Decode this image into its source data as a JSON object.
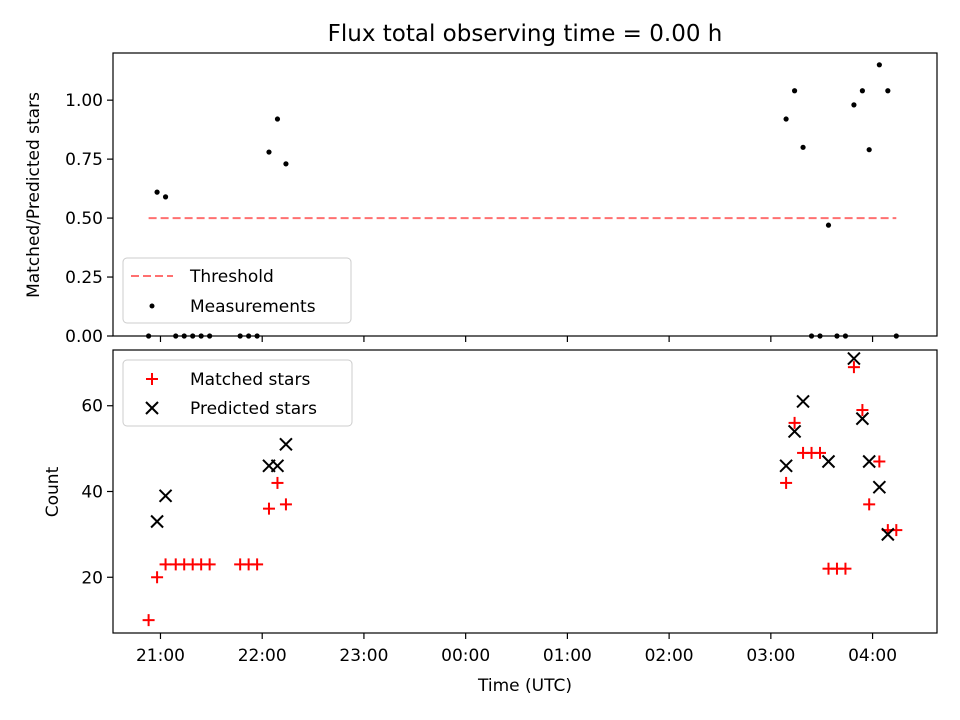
{
  "figure": {
    "title": "Flux total observing time = 0.00 h",
    "xlabel": "Time (UTC)",
    "xtick_labels": [
      "21:00",
      "22:00",
      "23:00",
      "00:00",
      "01:00",
      "02:00",
      "03:00",
      "04:00"
    ]
  },
  "chart_data": [
    {
      "type": "scatter",
      "panel": "top",
      "ylabel": "Matched/Predicted stars",
      "xlim": [
        "20:32",
        "04:38"
      ],
      "ylim": [
        0,
        1.2
      ],
      "y_tick_values": [
        0,
        0.25,
        0.5,
        0.75,
        1.0
      ],
      "y_tick_labels": [
        "0.00",
        "0.25",
        "0.50",
        "0.75",
        "1.00"
      ],
      "legend_position": "lower left",
      "threshold": {
        "name": "Threshold",
        "y": 0.5,
        "x_range": [
          "20:53",
          "04:14"
        ],
        "color": "#ff7070",
        "style": "dashed"
      },
      "series": [
        {
          "name": "Measurements",
          "color": "#000000",
          "marker": "dot",
          "points": [
            {
              "x": "20:53",
              "y": 0.0
            },
            {
              "x": "20:58",
              "y": 0.61
            },
            {
              "x": "21:03",
              "y": 0.59
            },
            {
              "x": "21:09",
              "y": 0.0
            },
            {
              "x": "21:14",
              "y": 0.0
            },
            {
              "x": "21:19",
              "y": 0.0
            },
            {
              "x": "21:24",
              "y": 0.0
            },
            {
              "x": "21:29",
              "y": 0.0
            },
            {
              "x": "21:47",
              "y": 0.0
            },
            {
              "x": "21:52",
              "y": 0.0
            },
            {
              "x": "21:57",
              "y": 0.0
            },
            {
              "x": "22:04",
              "y": 0.78
            },
            {
              "x": "22:09",
              "y": 0.92
            },
            {
              "x": "22:14",
              "y": 0.73
            },
            {
              "x": "03:09",
              "y": 0.92
            },
            {
              "x": "03:14",
              "y": 1.04
            },
            {
              "x": "03:19",
              "y": 0.8
            },
            {
              "x": "03:24",
              "y": 0.0
            },
            {
              "x": "03:29",
              "y": 0.0
            },
            {
              "x": "03:34",
              "y": 0.47
            },
            {
              "x": "03:39",
              "y": 0.0
            },
            {
              "x": "03:44",
              "y": 0.0
            },
            {
              "x": "03:49",
              "y": 0.98
            },
            {
              "x": "03:54",
              "y": 1.04
            },
            {
              "x": "03:58",
              "y": 0.79
            },
            {
              "x": "04:04",
              "y": 1.15
            },
            {
              "x": "04:09",
              "y": 1.04
            },
            {
              "x": "04:14",
              "y": 0.0
            }
          ]
        }
      ]
    },
    {
      "type": "scatter",
      "panel": "bottom",
      "ylabel": "Count",
      "xlim": [
        "20:32",
        "04:38"
      ],
      "ylim": [
        7,
        73
      ],
      "y_tick_values": [
        20,
        40,
        60
      ],
      "y_tick_labels": [
        "20",
        "40",
        "60"
      ],
      "legend_position": "upper left",
      "series": [
        {
          "name": "Matched stars",
          "color": "#ff0000",
          "marker": "plus",
          "points": [
            {
              "x": "20:53",
              "y": 10
            },
            {
              "x": "20:58",
              "y": 20
            },
            {
              "x": "21:03",
              "y": 23
            },
            {
              "x": "21:09",
              "y": 23
            },
            {
              "x": "21:14",
              "y": 23
            },
            {
              "x": "21:19",
              "y": 23
            },
            {
              "x": "21:24",
              "y": 23
            },
            {
              "x": "21:29",
              "y": 23
            },
            {
              "x": "21:47",
              "y": 23
            },
            {
              "x": "21:52",
              "y": 23
            },
            {
              "x": "21:57",
              "y": 23
            },
            {
              "x": "22:04",
              "y": 36
            },
            {
              "x": "22:09",
              "y": 42
            },
            {
              "x": "22:14",
              "y": 37
            },
            {
              "x": "03:09",
              "y": 42
            },
            {
              "x": "03:14",
              "y": 56
            },
            {
              "x": "03:19",
              "y": 49
            },
            {
              "x": "03:24",
              "y": 49
            },
            {
              "x": "03:29",
              "y": 49
            },
            {
              "x": "03:34",
              "y": 22
            },
            {
              "x": "03:39",
              "y": 22
            },
            {
              "x": "03:44",
              "y": 22
            },
            {
              "x": "03:49",
              "y": 69
            },
            {
              "x": "03:54",
              "y": 59
            },
            {
              "x": "03:58",
              "y": 37
            },
            {
              "x": "04:04",
              "y": 47
            },
            {
              "x": "04:09",
              "y": 31
            },
            {
              "x": "04:14",
              "y": 31
            }
          ]
        },
        {
          "name": "Predicted stars",
          "color": "#000000",
          "marker": "x",
          "points": [
            {
              "x": "20:58",
              "y": 33
            },
            {
              "x": "21:03",
              "y": 39
            },
            {
              "x": "22:04",
              "y": 46
            },
            {
              "x": "22:09",
              "y": 46
            },
            {
              "x": "22:14",
              "y": 51
            },
            {
              "x": "03:09",
              "y": 46
            },
            {
              "x": "03:14",
              "y": 54
            },
            {
              "x": "03:19",
              "y": 61
            },
            {
              "x": "03:34",
              "y": 47
            },
            {
              "x": "03:49",
              "y": 71
            },
            {
              "x": "03:54",
              "y": 57
            },
            {
              "x": "03:58",
              "y": 47
            },
            {
              "x": "04:04",
              "y": 41
            },
            {
              "x": "04:09",
              "y": 30
            }
          ]
        }
      ]
    }
  ]
}
